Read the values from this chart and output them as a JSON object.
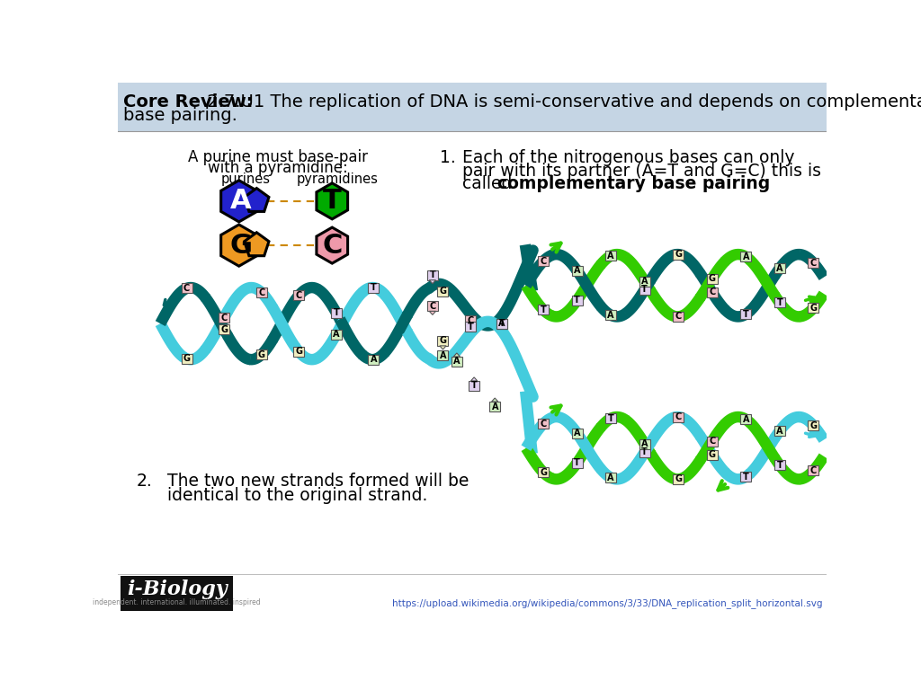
{
  "title_bold": "Core Review:",
  "title_rest": " 2.7.U1 The replication of DNA is semi-conservative and depends on complementary",
  "title_line2": "base pairing.",
  "header_bg": "#c5d5e4",
  "bg_color": "#ffffff",
  "purine_label": "purines",
  "pyramidine_label": "pyramidines",
  "bp_title_line1": "A purine must base-pair",
  "bp_title_line2": "with a pyramidine:",
  "pt1_line1": "Each of the nitrogenous bases can only",
  "pt1_line2": "pair with its partner (A=T and G=C) this is",
  "pt1_line3_pre": "called ",
  "pt1_bold": "complementary base pairing",
  "pt1_end": ".",
  "pt2_line1": "The two new strands formed will be",
  "pt2_line2": "identical to the original strand.",
  "ibio_bg": "#111111",
  "ibio_text": "i-Biology",
  "ibio_sub": "independent. international. illuminated. inspired",
  "url": "https://upload.wikimedia.org/wikipedia/commons/3/33/DNA_replication_split_horizontal.svg",
  "A_color": "#2222cc",
  "T_color": "#00aa00",
  "G_color": "#ee9922",
  "C_color": "#ee99aa",
  "teal_dark": "#006666",
  "cyan_light": "#44ccdd",
  "green_new": "#33cc00",
  "box_pink": "#f0c0c8",
  "box_green": "#d0eec0",
  "box_yellow": "#f0eec0",
  "box_lavender": "#e0d0ee",
  "box_white": "#f8f8f8"
}
